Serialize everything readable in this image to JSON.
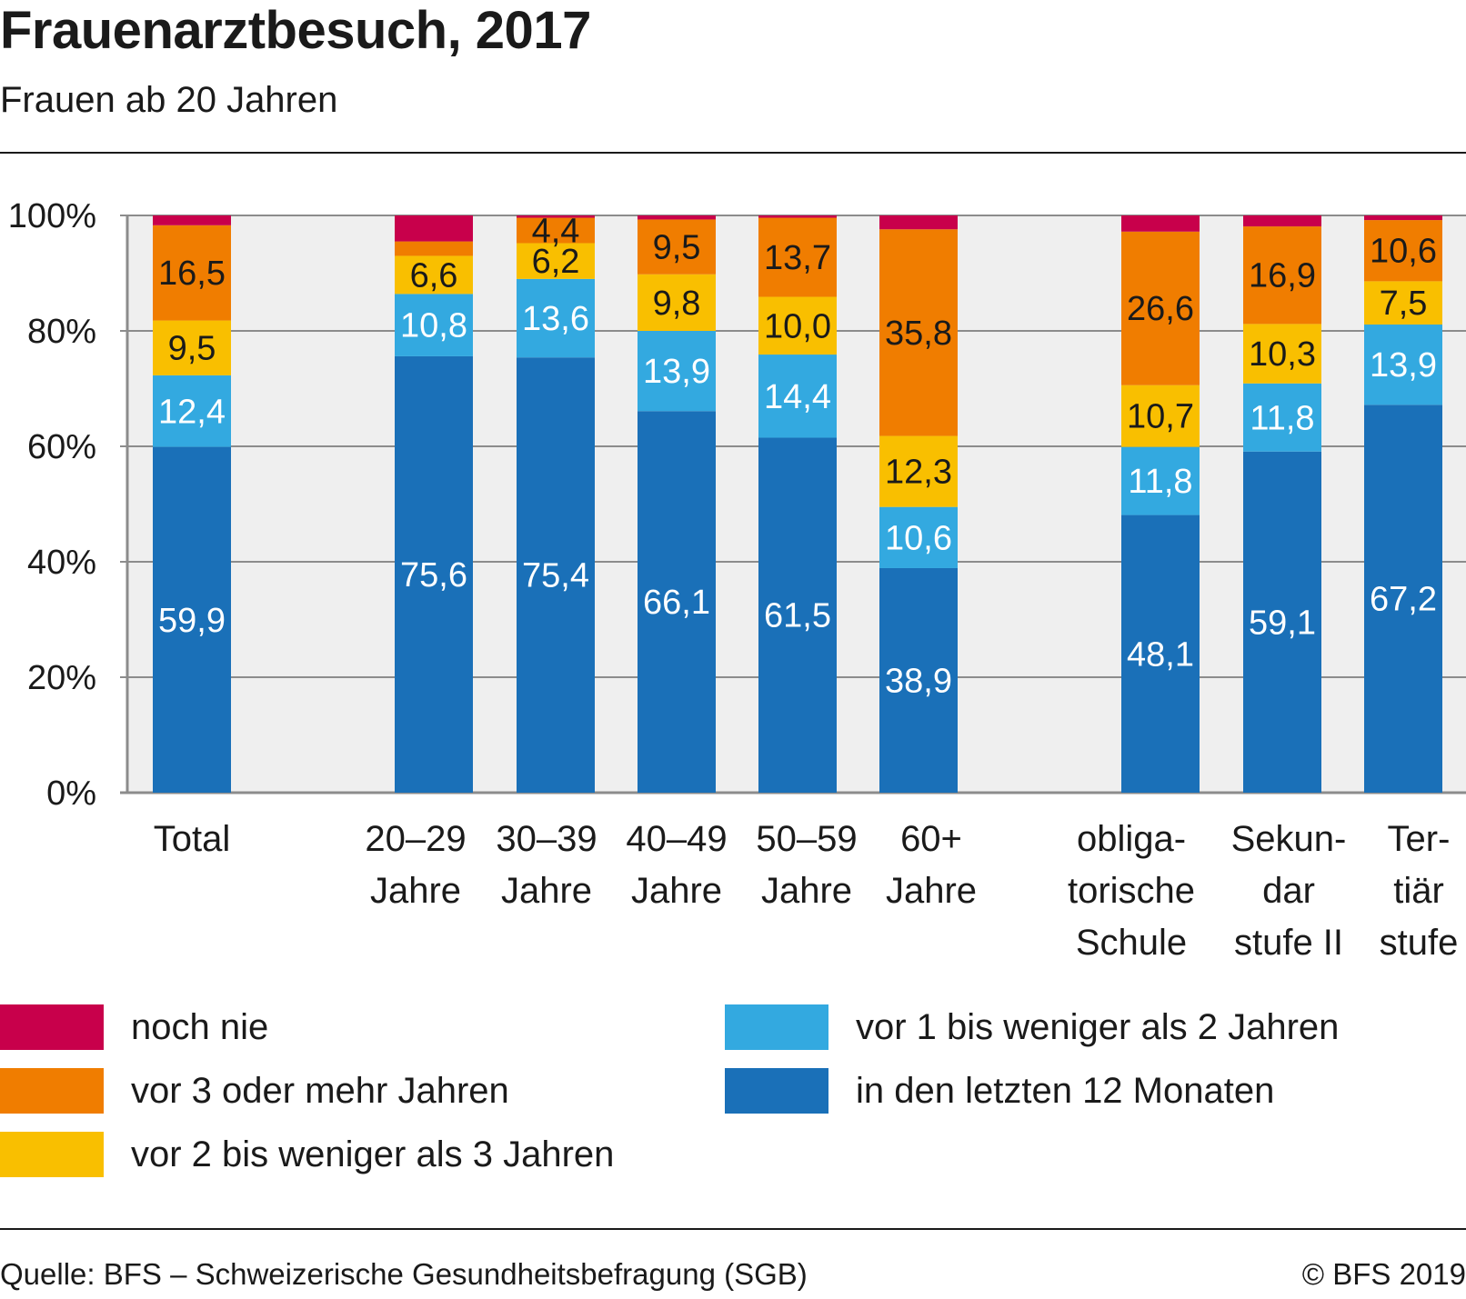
{
  "header": {
    "title": "Frauenarztbesuch, 2017",
    "subtitle": "Frauen ab 20 Jahren"
  },
  "footer": {
    "source": "Quelle: BFS – Schweizerische Gesundheitsbefragung (SGB)",
    "copyright": "© BFS 2019"
  },
  "chart_data": {
    "type": "bar",
    "stacked": true,
    "title": "Frauenarztbesuch, 2017",
    "subtitle": "Frauen ab 20 Jahren",
    "ylim": [
      0,
      100
    ],
    "yticks": [
      "0%",
      "20%",
      "40%",
      "60%",
      "80%",
      "100%"
    ],
    "grid": true,
    "legend_position": "bottom",
    "categories": [
      [
        "Total"
      ],
      [
        "20–29",
        "Jahre"
      ],
      [
        "30–39",
        "Jahre"
      ],
      [
        "40–49",
        "Jahre"
      ],
      [
        "50–59",
        "Jahre"
      ],
      [
        "60+",
        "Jahre"
      ],
      [
        "obliga-",
        "torische",
        "Schule"
      ],
      [
        "Sekun-",
        "dar",
        "stufe II"
      ],
      [
        "Ter-",
        "tiär",
        "stufe"
      ]
    ],
    "series": [
      {
        "name": "in den letzten 12 Monaten",
        "color": "#1a70b8",
        "values": [
          59.9,
          75.6,
          75.4,
          66.1,
          61.5,
          38.9,
          48.1,
          59.1,
          67.2
        ],
        "labels": [
          "59,9",
          "75,6",
          "75,4",
          "66,1",
          "61,5",
          "38,9",
          "48,1",
          "59,1",
          "67,2"
        ],
        "label_color": "#ffffff"
      },
      {
        "name": "vor 1 bis weniger als 2 Jahren",
        "color": "#33a9e0",
        "values": [
          12.4,
          10.8,
          13.6,
          13.9,
          14.4,
          10.6,
          11.8,
          11.8,
          13.9
        ],
        "labels": [
          "12,4",
          "10,8",
          "13,6",
          "13,9",
          "14,4",
          "10,6",
          "11,8",
          "11,8",
          "13,9"
        ],
        "label_color": "#ffffff"
      },
      {
        "name": "vor 2 bis weniger als 3 Jahren",
        "color": "#f9bf00",
        "values": [
          9.5,
          6.6,
          6.2,
          9.8,
          10.0,
          12.3,
          10.7,
          10.3,
          7.5
        ],
        "labels": [
          "9,5",
          "6,6",
          "6,2",
          "9,8",
          "10,0",
          "12,3",
          "10,7",
          "10,3",
          "7,5"
        ],
        "label_color": "#1a1a1a"
      },
      {
        "name": "vor 3 oder mehr Jahren",
        "color": "#f07d00",
        "values": [
          16.5,
          2.5,
          4.4,
          9.5,
          13.7,
          35.8,
          26.6,
          16.9,
          10.6
        ],
        "labels": [
          "16,5",
          "",
          "4,4",
          "9,5",
          "13,7",
          "35,8",
          "26,6",
          "16,9",
          "10,6"
        ],
        "label_color": "#1a1a1a"
      },
      {
        "name": "noch nie",
        "color": "#c8004b",
        "values": [
          1.7,
          4.5,
          0.4,
          0.7,
          0.4,
          2.4,
          2.8,
          1.9,
          0.8
        ],
        "labels": [
          "",
          "",
          "",
          "",
          "",
          "",
          "",
          "",
          ""
        ],
        "label_color": "#ffffff"
      }
    ]
  },
  "legend": {
    "items": [
      {
        "label": "noch nie",
        "color": "#c8004b"
      },
      {
        "label": "vor 3 oder mehr Jahren",
        "color": "#f07d00"
      },
      {
        "label": "vor 2 bis weniger als 3 Jahren",
        "color": "#f9bf00"
      },
      {
        "label": "vor 1 bis weniger als 2 Jahren",
        "color": "#33a9e0"
      },
      {
        "label": "in den letzten 12 Monaten",
        "color": "#1a70b8"
      }
    ]
  }
}
